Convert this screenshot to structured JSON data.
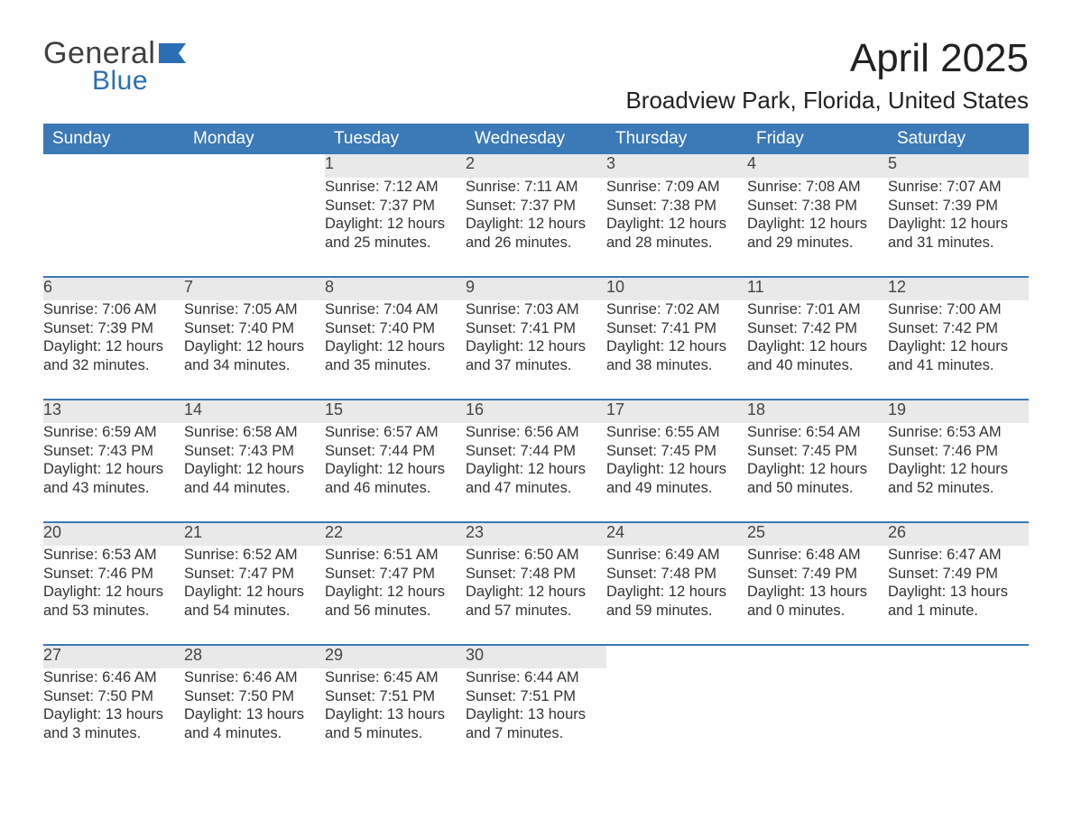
{
  "page": {
    "background_color": "#ffffff",
    "text_color": "#222222",
    "header_bg": "#3b79b7",
    "daynum_bg": "#e9e9e9",
    "week_border_color": "#3b79b7"
  },
  "logo": {
    "word1": "General",
    "word2": "Blue"
  },
  "title": "April 2025",
  "location": "Broadview Park, Florida, United States",
  "weekdays": [
    "Sunday",
    "Monday",
    "Tuesday",
    "Wednesday",
    "Thursday",
    "Friday",
    "Saturday"
  ],
  "labels": {
    "sunrise": "Sunrise:",
    "sunset": "Sunset:",
    "daylight": "Daylight:"
  },
  "weeks": [
    [
      null,
      null,
      {
        "n": "1",
        "sr": "7:12 AM",
        "ss": "7:37 PM",
        "dl": "12 hours and 25 minutes."
      },
      {
        "n": "2",
        "sr": "7:11 AM",
        "ss": "7:37 PM",
        "dl": "12 hours and 26 minutes."
      },
      {
        "n": "3",
        "sr": "7:09 AM",
        "ss": "7:38 PM",
        "dl": "12 hours and 28 minutes."
      },
      {
        "n": "4",
        "sr": "7:08 AM",
        "ss": "7:38 PM",
        "dl": "12 hours and 29 minutes."
      },
      {
        "n": "5",
        "sr": "7:07 AM",
        "ss": "7:39 PM",
        "dl": "12 hours and 31 minutes."
      }
    ],
    [
      {
        "n": "6",
        "sr": "7:06 AM",
        "ss": "7:39 PM",
        "dl": "12 hours and 32 minutes."
      },
      {
        "n": "7",
        "sr": "7:05 AM",
        "ss": "7:40 PM",
        "dl": "12 hours and 34 minutes."
      },
      {
        "n": "8",
        "sr": "7:04 AM",
        "ss": "7:40 PM",
        "dl": "12 hours and 35 minutes."
      },
      {
        "n": "9",
        "sr": "7:03 AM",
        "ss": "7:41 PM",
        "dl": "12 hours and 37 minutes."
      },
      {
        "n": "10",
        "sr": "7:02 AM",
        "ss": "7:41 PM",
        "dl": "12 hours and 38 minutes."
      },
      {
        "n": "11",
        "sr": "7:01 AM",
        "ss": "7:42 PM",
        "dl": "12 hours and 40 minutes."
      },
      {
        "n": "12",
        "sr": "7:00 AM",
        "ss": "7:42 PM",
        "dl": "12 hours and 41 minutes."
      }
    ],
    [
      {
        "n": "13",
        "sr": "6:59 AM",
        "ss": "7:43 PM",
        "dl": "12 hours and 43 minutes."
      },
      {
        "n": "14",
        "sr": "6:58 AM",
        "ss": "7:43 PM",
        "dl": "12 hours and 44 minutes."
      },
      {
        "n": "15",
        "sr": "6:57 AM",
        "ss": "7:44 PM",
        "dl": "12 hours and 46 minutes."
      },
      {
        "n": "16",
        "sr": "6:56 AM",
        "ss": "7:44 PM",
        "dl": "12 hours and 47 minutes."
      },
      {
        "n": "17",
        "sr": "6:55 AM",
        "ss": "7:45 PM",
        "dl": "12 hours and 49 minutes."
      },
      {
        "n": "18",
        "sr": "6:54 AM",
        "ss": "7:45 PM",
        "dl": "12 hours and 50 minutes."
      },
      {
        "n": "19",
        "sr": "6:53 AM",
        "ss": "7:46 PM",
        "dl": "12 hours and 52 minutes."
      }
    ],
    [
      {
        "n": "20",
        "sr": "6:53 AM",
        "ss": "7:46 PM",
        "dl": "12 hours and 53 minutes."
      },
      {
        "n": "21",
        "sr": "6:52 AM",
        "ss": "7:47 PM",
        "dl": "12 hours and 54 minutes."
      },
      {
        "n": "22",
        "sr": "6:51 AM",
        "ss": "7:47 PM",
        "dl": "12 hours and 56 minutes."
      },
      {
        "n": "23",
        "sr": "6:50 AM",
        "ss": "7:48 PM",
        "dl": "12 hours and 57 minutes."
      },
      {
        "n": "24",
        "sr": "6:49 AM",
        "ss": "7:48 PM",
        "dl": "12 hours and 59 minutes."
      },
      {
        "n": "25",
        "sr": "6:48 AM",
        "ss": "7:49 PM",
        "dl": "13 hours and 0 minutes."
      },
      {
        "n": "26",
        "sr": "6:47 AM",
        "ss": "7:49 PM",
        "dl": "13 hours and 1 minute."
      }
    ],
    [
      {
        "n": "27",
        "sr": "6:46 AM",
        "ss": "7:50 PM",
        "dl": "13 hours and 3 minutes."
      },
      {
        "n": "28",
        "sr": "6:46 AM",
        "ss": "7:50 PM",
        "dl": "13 hours and 4 minutes."
      },
      {
        "n": "29",
        "sr": "6:45 AM",
        "ss": "7:51 PM",
        "dl": "13 hours and 5 minutes."
      },
      {
        "n": "30",
        "sr": "6:44 AM",
        "ss": "7:51 PM",
        "dl": "13 hours and 7 minutes."
      },
      null,
      null,
      null
    ]
  ]
}
